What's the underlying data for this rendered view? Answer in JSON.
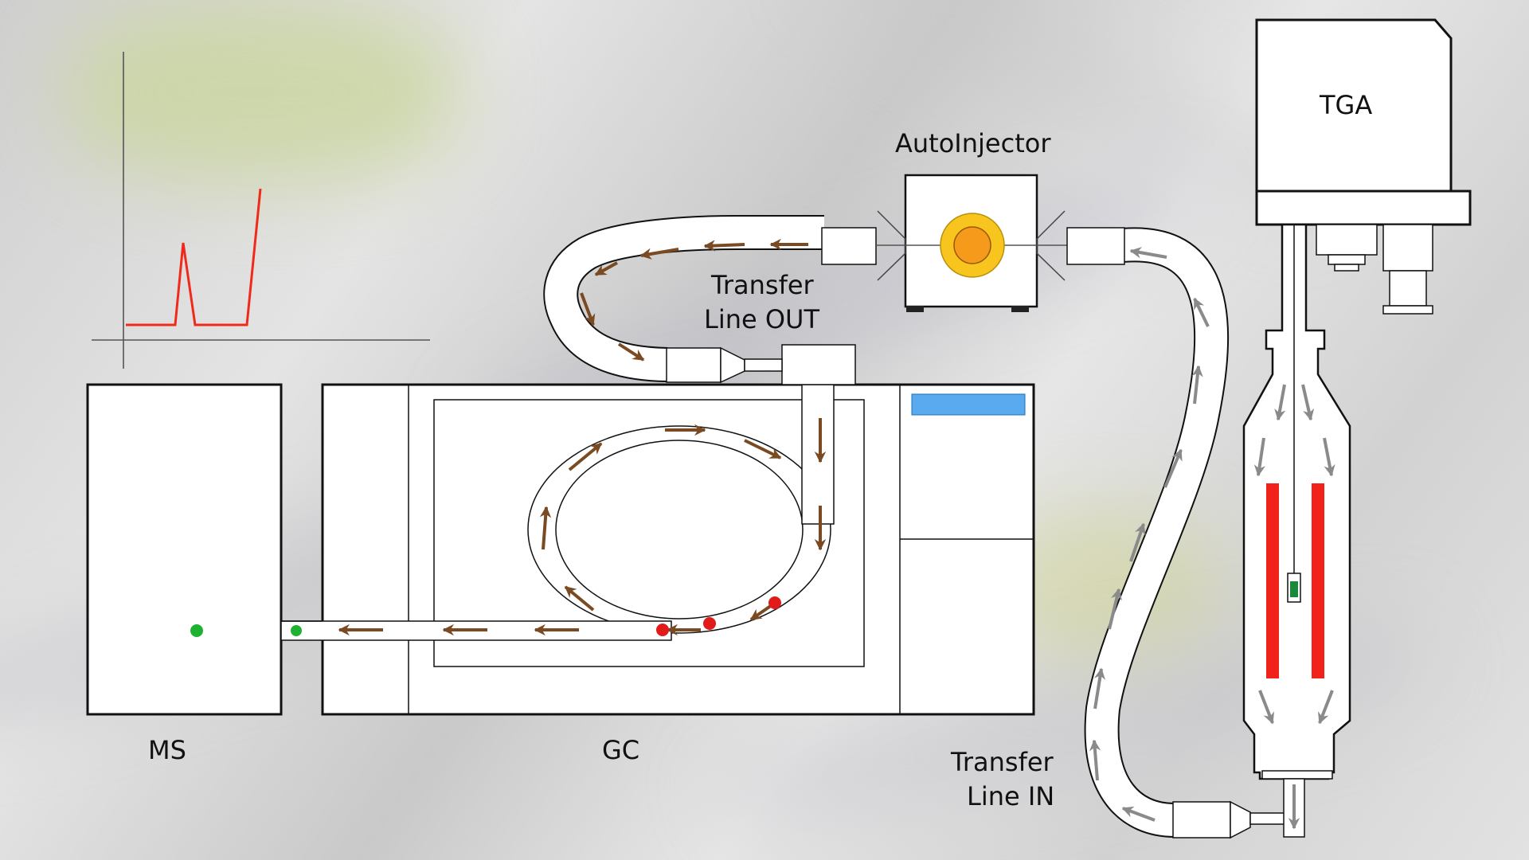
{
  "labels": {
    "tga": "TGA",
    "autoinjector": "AutoInjector",
    "transfer_out_1": "Transfer",
    "transfer_out_2": "Line OUT",
    "transfer_in_1": "Transfer",
    "transfer_in_2": "Line IN",
    "ms": "MS",
    "gc": "GC"
  },
  "colors": {
    "arrow": "#7a4a22",
    "gray_arrow": "#8a8a8a",
    "sample_red": "#e11a1a",
    "eluted_green": "#1fb232",
    "heater_red": "#f0221a",
    "plot_line": "#f02a1a",
    "display_blue": "#5aaaf0",
    "injector_outer": "#f7c51e",
    "injector_inner": "#f59a1b"
  },
  "icons": {
    "chromatogram": "mini-chromatogram-plot",
    "flow_arrows": "arrow-icon"
  }
}
